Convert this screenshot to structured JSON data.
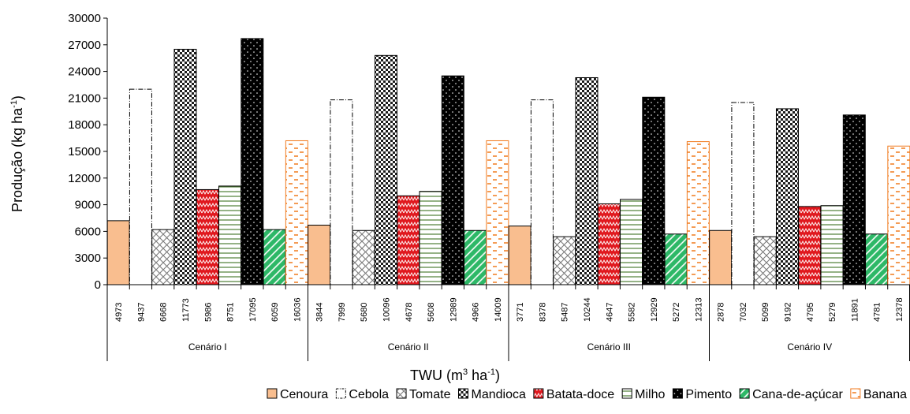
{
  "chart_data": {
    "type": "bar",
    "title": "",
    "ylabel": {
      "main": "Produção (kg ha",
      "sup": "-1",
      "end": ")"
    },
    "xlabel": {
      "main": "TWU (m",
      "sup1": "3",
      "mid": " ha",
      "sup2": "-1",
      "end": ")"
    },
    "ylim": [
      0,
      30000
    ],
    "yticks": [
      0,
      3000,
      6000,
      9000,
      12000,
      15000,
      18000,
      21000,
      24000,
      27000,
      30000
    ],
    "grid": false,
    "legend_position": "bottom",
    "groups": [
      {
        "name": "Cenário I",
        "twu_labels": [
          "4973",
          "9437",
          "6668",
          "11773",
          "5986",
          "8751",
          "17095",
          "6059",
          "16036"
        ],
        "values": [
          7200,
          22000,
          6200,
          26500,
          10700,
          11100,
          27700,
          6200,
          16200
        ]
      },
      {
        "name": "Cenário II",
        "twu_labels": [
          "3844",
          "7999",
          "5680",
          "10096",
          "4678",
          "5608",
          "12989",
          "4966",
          "14009"
        ],
        "values": [
          6700,
          20800,
          6100,
          25800,
          10000,
          10500,
          23500,
          6100,
          16200
        ]
      },
      {
        "name": "Cenário III",
        "twu_labels": [
          "3771",
          "8378",
          "5487",
          "10244",
          "4647",
          "5582",
          "12929",
          "5272",
          "12313"
        ],
        "values": [
          6600,
          20800,
          5400,
          23300,
          9100,
          9600,
          21100,
          5700,
          16100
        ]
      },
      {
        "name": "Cenário IV",
        "twu_labels": [
          "2878",
          "7032",
          "5099",
          "9192",
          "4795",
          "5279",
          "11891",
          "4781",
          "12378"
        ],
        "values": [
          6100,
          20500,
          5400,
          19800,
          8800,
          8900,
          19100,
          5700,
          15600
        ]
      }
    ],
    "series": [
      {
        "name": "Cenoura",
        "color": "#F9BE8F",
        "pattern": "solid"
      },
      {
        "name": "Cebola",
        "color": "#ffffff",
        "pattern": "dashdot-border"
      },
      {
        "name": "Tomate",
        "color": "#ffffff",
        "pattern": "crosshatch"
      },
      {
        "name": "Mandioca",
        "color": "#000000",
        "pattern": "checker"
      },
      {
        "name": "Batata-doce",
        "color": "#E0181E",
        "pattern": "zigzag"
      },
      {
        "name": "Milho",
        "color": "#ffffff",
        "pattern": "horizontal-lines",
        "stroke": "#4E7F34"
      },
      {
        "name": "Pimento",
        "color": "#000000",
        "pattern": "dots"
      },
      {
        "name": "Cana-de-açúcar",
        "color": "#2DB867",
        "pattern": "diagonal-lines"
      },
      {
        "name": "Banana",
        "color": "#ffffff",
        "pattern": "dashes",
        "stroke": "#F07A1E"
      }
    ]
  }
}
